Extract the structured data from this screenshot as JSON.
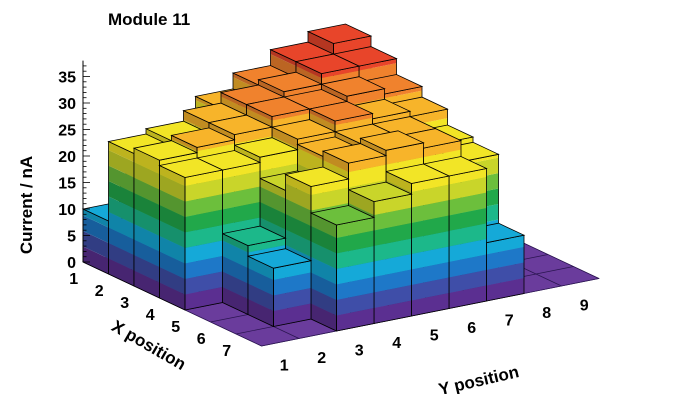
{
  "chart_data": {
    "type": "lego3d",
    "title": "Module 11",
    "zlabel": "Current / nA",
    "xlabel": "X position",
    "ylabel": "Y position",
    "x_ticks": [
      "1",
      "2",
      "3",
      "4",
      "5",
      "6",
      "7"
    ],
    "y_ticks": [
      "1",
      "2",
      "3",
      "4",
      "5",
      "6",
      "7",
      "8",
      "9"
    ],
    "z_ticks": [
      "0",
      "5",
      "10",
      "15",
      "20",
      "25",
      "30",
      "35"
    ],
    "zlim": [
      0,
      38
    ],
    "grid": "floor",
    "values": [
      [
        10,
        15,
        20,
        27,
        30,
        33,
        35,
        0,
        0
      ],
      [
        25,
        26,
        28,
        30,
        31,
        33,
        33,
        0,
        0
      ],
      [
        26,
        27,
        28,
        30,
        30,
        31,
        30,
        0,
        0
      ],
      [
        25,
        25,
        26,
        28,
        30,
        29,
        28,
        0,
        0
      ],
      [
        0,
        13,
        22,
        27,
        28,
        28,
        25,
        0,
        0
      ],
      [
        0,
        11,
        25,
        28,
        29,
        28,
        24,
        0,
        0
      ],
      [
        0,
        0,
        20,
        23,
        25,
        25,
        11,
        0,
        0
      ]
    ],
    "colors": [
      "#5b2f91",
      "#3f4ea8",
      "#1e78c8",
      "#15a9d8",
      "#1cb88a",
      "#21a84a",
      "#6cbf3c",
      "#c9d52a",
      "#f2e526",
      "#f7b42a",
      "#f0822d",
      "#e8452a",
      "#dd1f26"
    ]
  }
}
